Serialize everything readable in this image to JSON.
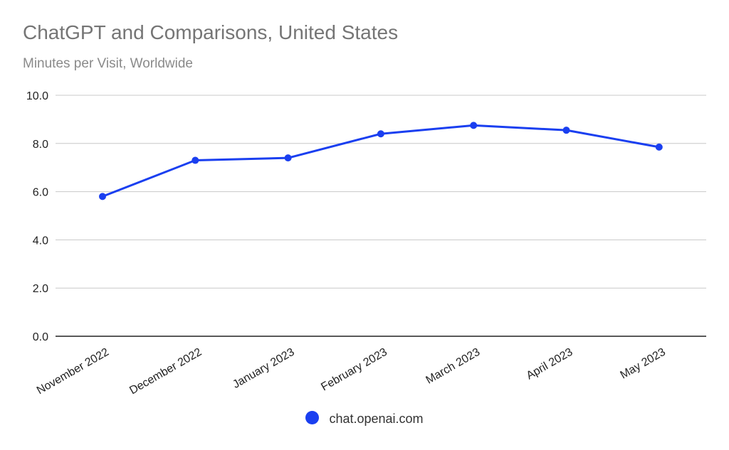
{
  "chart_data": {
    "type": "line",
    "title": "ChatGPT and Comparisons, United States",
    "subtitle": "Minutes per Visit, Worldwide",
    "categories": [
      "November 2022",
      "December 2022",
      "January 2023",
      "February 2023",
      "March 2023",
      "April 2023",
      "May 2023"
    ],
    "series": [
      {
        "name": "chat.openai.com",
        "values": [
          5.8,
          7.3,
          7.4,
          8.4,
          8.75,
          8.55,
          7.85
        ],
        "color": "#1a3ff0"
      }
    ],
    "ylim": [
      0,
      10
    ],
    "yticks": [
      "0.0",
      "2.0",
      "4.0",
      "6.0",
      "8.0",
      "10.0"
    ],
    "grid": true,
    "legend_position": "bottom"
  }
}
